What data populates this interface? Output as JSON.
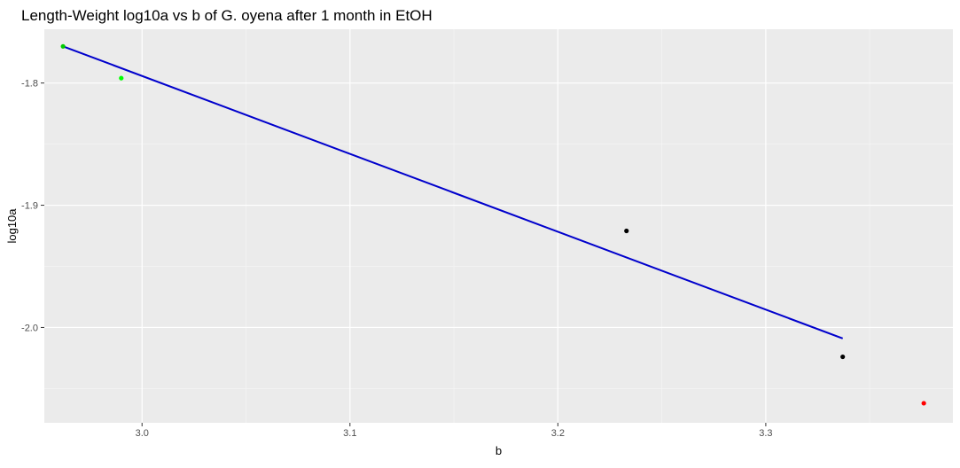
{
  "chart_data": {
    "type": "scatter",
    "title": "Length-Weight log10a vs b of G. oyena after 1 month in EtOH",
    "xlabel": "b",
    "ylabel": "log10a",
    "xlim": [
      2.953,
      3.39
    ],
    "ylim": [
      -2.078,
      -1.756
    ],
    "x_ticks": [
      3.0,
      3.1,
      3.2,
      3.3
    ],
    "x_tick_labels": [
      "3.0",
      "3.1",
      "3.2",
      "3.3"
    ],
    "y_ticks": [
      -1.8,
      -1.9,
      -2.0
    ],
    "y_tick_labels": [
      "-1.8",
      "-1.9",
      "-2.0"
    ],
    "grid": true,
    "background": "#ebebeb",
    "points": [
      {
        "x": 2.962,
        "y": -1.77,
        "color": "#00cc00"
      },
      {
        "x": 2.99,
        "y": -1.796,
        "color": "#00ff00"
      },
      {
        "x": 3.233,
        "y": -1.921,
        "color": "#000000"
      },
      {
        "x": 3.337,
        "y": -2.024,
        "color": "#000000"
      },
      {
        "x": 3.376,
        "y": -2.062,
        "color": "#ff0000"
      }
    ],
    "fit_line": {
      "x": [
        2.962,
        3.337
      ],
      "y": [
        -1.77,
        -2.009
      ],
      "color": "#0000cc"
    }
  }
}
